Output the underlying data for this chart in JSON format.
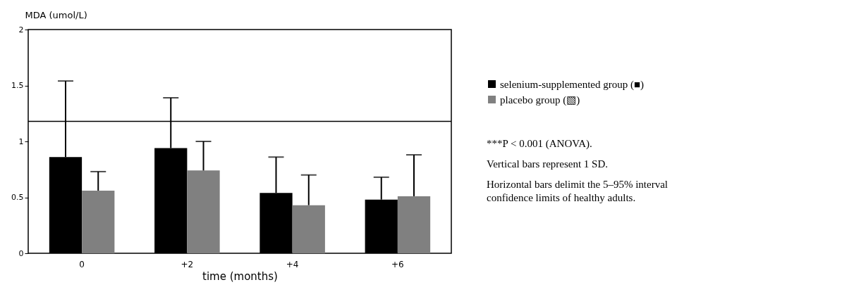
{
  "chart_data": {
    "type": "bar",
    "ylabel": "MDA (umol/L)",
    "xlabel": "time (months)",
    "categories": [
      "0",
      "+2",
      "+4",
      "+6"
    ],
    "series": [
      {
        "name": "selenium-supplemented group (■)",
        "color": "#000000",
        "values": [
          0.86,
          0.94,
          0.54,
          0.48
        ],
        "errors": [
          [
            0.86,
            1.54
          ],
          [
            0.94,
            1.39
          ],
          [
            0.54,
            0.86
          ],
          [
            0.48,
            0.68
          ]
        ]
      },
      {
        "name": "placebo group (▧)",
        "color": "#808080",
        "values": [
          0.56,
          0.74,
          0.43,
          0.51
        ],
        "errors": [
          [
            0.56,
            0.73
          ],
          [
            0.74,
            1.0
          ],
          [
            0.43,
            0.7
          ],
          [
            0.51,
            0.88
          ]
        ]
      }
    ],
    "ylim": [
      0,
      2
    ],
    "yticks": [
      0,
      0.5,
      1,
      1.5,
      2
    ],
    "grid": false,
    "legend": "right",
    "ref_lines": [
      {
        "axis": "y",
        "value": 1.18,
        "color": "#000000"
      }
    ],
    "annotations": [
      "***P < 0.001 (ANOVA).",
      "Vertical bars represent 1 SD.",
      "Horizontal bars delimit the 5–95% interval confidence limits of healthy adults."
    ]
  }
}
